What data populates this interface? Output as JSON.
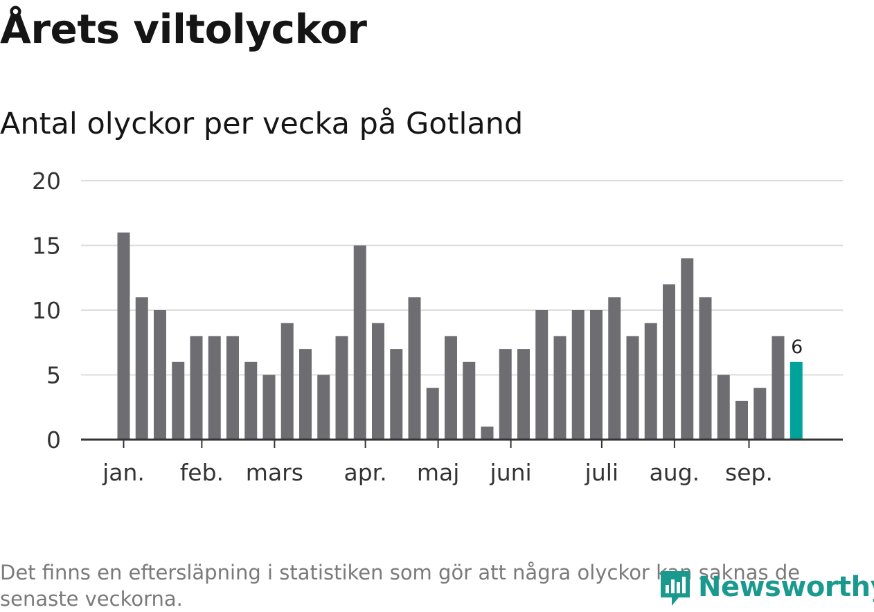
{
  "title": "Årets viltolyckor",
  "subtitle": "Antal olyckor per vecka på Gotland",
  "footnote": "Det finns en eftersläpning i statistiken som gör att några olyckor kan saknas de senaste veckorna.",
  "logo": {
    "text": "Newsworthy",
    "icon": "chart-logo-icon",
    "color": "#1a9a8e"
  },
  "colors": {
    "bar": "#6e6d72",
    "highlight": "#00a39a",
    "grid": "#dddddd",
    "axis": "#333333"
  },
  "chart_data": {
    "type": "bar",
    "title": "Antal olyckor per vecka på Gotland",
    "xlabel": "",
    "ylabel": "",
    "ylim": [
      0,
      20
    ],
    "yticks": [
      "0",
      "5",
      "10",
      "15",
      "20"
    ],
    "grid": true,
    "weeks": [
      1,
      2,
      3,
      4,
      5,
      6,
      7,
      8,
      9,
      10,
      11,
      12,
      13,
      14,
      15,
      16,
      17,
      18,
      19,
      20,
      21,
      22,
      23,
      24,
      25,
      26,
      27,
      28,
      29,
      30,
      31,
      32,
      33,
      34,
      35,
      36,
      37,
      38
    ],
    "values": [
      16,
      11,
      10,
      6,
      8,
      8,
      8,
      6,
      5,
      9,
      7,
      5,
      8,
      15,
      9,
      7,
      11,
      4,
      8,
      6,
      1,
      7,
      7,
      10,
      8,
      10,
      10,
      11,
      8,
      9,
      12,
      14,
      11,
      5,
      3,
      4,
      8,
      6
    ],
    "highlight_index": 37,
    "highlight_label": "6",
    "month_ticks": [
      {
        "label": "jan.",
        "week": 1
      },
      {
        "label": "feb.",
        "week": 5.3
      },
      {
        "label": "mars",
        "week": 9.3
      },
      {
        "label": "apr.",
        "week": 14.3
      },
      {
        "label": "maj",
        "week": 18.3
      },
      {
        "label": "juni",
        "week": 22.3
      },
      {
        "label": "juli",
        "week": 27.3
      },
      {
        "label": "aug.",
        "week": 31.3
      },
      {
        "label": "sep.",
        "week": 35.4
      }
    ]
  }
}
